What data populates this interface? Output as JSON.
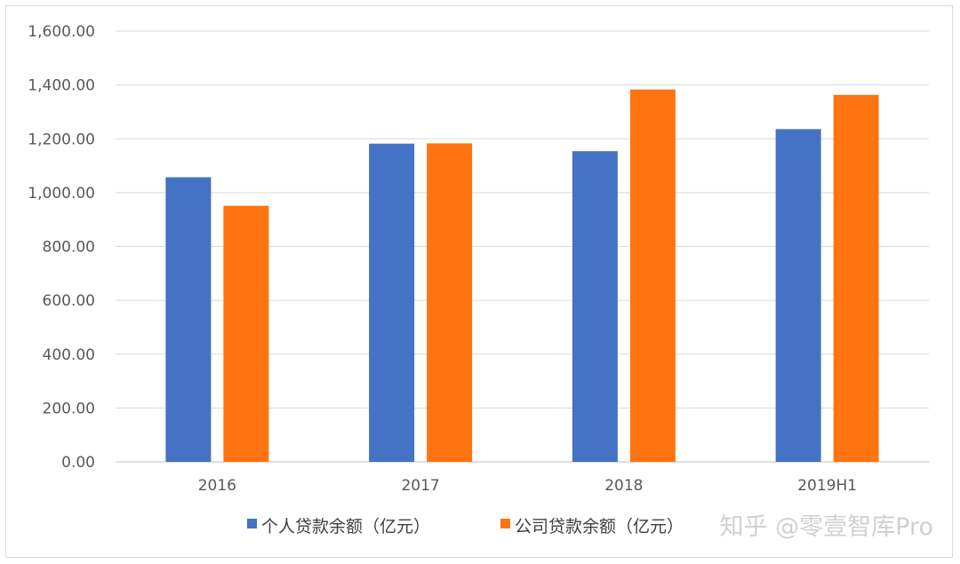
{
  "chart_data": {
    "type": "bar",
    "categories": [
      "2016",
      "2017",
      "2018",
      "2019H1"
    ],
    "series": [
      {
        "name": "个人贷款余额（亿元）",
        "color": "#4472C4",
        "values": [
          1057,
          1182,
          1154,
          1236
        ]
      },
      {
        "name": "公司贷款余额（亿元）",
        "color": "#FF7410",
        "values": [
          951,
          1183,
          1383,
          1363
        ]
      }
    ],
    "ylim": [
      0,
      1600
    ],
    "yticks": [
      "0.00",
      "200.00",
      "400.00",
      "600.00",
      "800.00",
      "1,000.00",
      "1,200.00",
      "1,400.00",
      "1,600.00"
    ],
    "grid": true,
    "legend": "bottom"
  },
  "watermark": "知乎 @零壹智库Pro"
}
